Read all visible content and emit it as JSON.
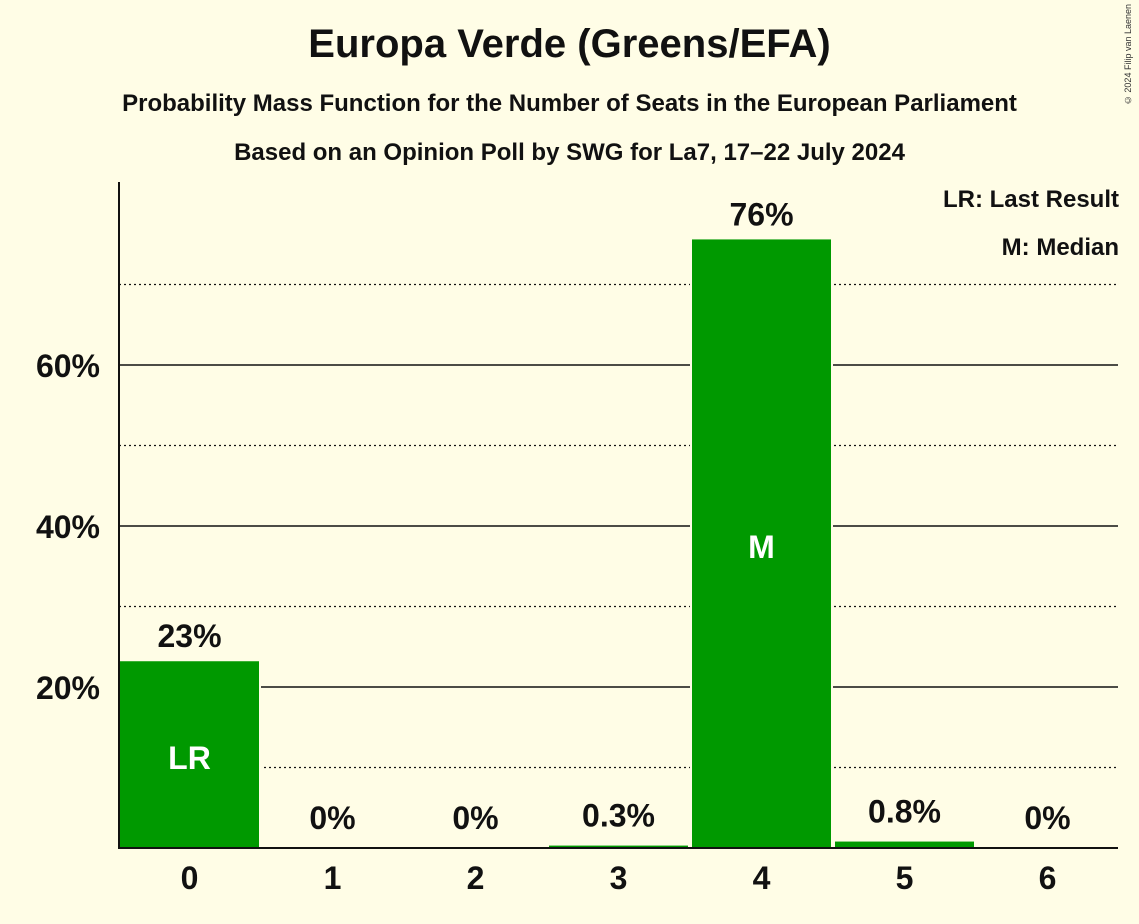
{
  "title": "Europa Verde (Greens/EFA)",
  "subtitle": "Probability Mass Function for the Number of Seats in the European Parliament",
  "subtitle2": "Based on an Opinion Poll by SWG for La7, 17–22 July 2024",
  "copyright": "© 2024 Filip van Laenen",
  "legend": {
    "lr": "LR: Last Result",
    "m": "M: Median"
  },
  "colors": {
    "bar": "#009900",
    "background": "#fffde6"
  },
  "chart_data": {
    "type": "bar",
    "categories": [
      "0",
      "1",
      "2",
      "3",
      "4",
      "5",
      "6"
    ],
    "values": [
      23.2,
      0,
      0,
      0.3,
      75.6,
      0.8,
      0
    ],
    "data_labels": [
      "23%",
      "0%",
      "0%",
      "0.3%",
      "76%",
      "0.8%",
      "0%"
    ],
    "bar_markers": [
      "LR",
      "",
      "",
      "",
      "M",
      "",
      ""
    ],
    "ytick_values": [
      20,
      40,
      60
    ],
    "ytick_labels": [
      "20%",
      "40%",
      "60%"
    ],
    "minor_gridlines": [
      10,
      30,
      50,
      70
    ],
    "ylim": [
      0,
      82
    ],
    "xlabel": "",
    "ylabel": ""
  }
}
